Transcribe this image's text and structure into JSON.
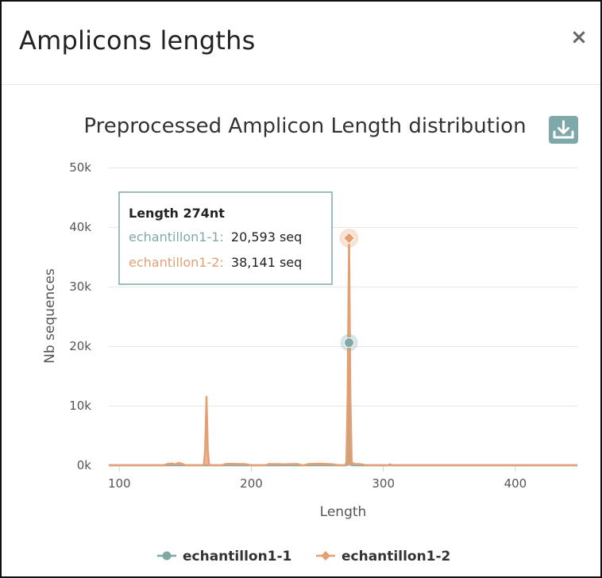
{
  "modal": {
    "title": "Amplicons lengths",
    "close_label": "×"
  },
  "colors": {
    "series1": "#7fa9a8",
    "series2": "#e4a072",
    "grid": "#e6e6e6",
    "download": "#7fa9a8"
  },
  "icons": {
    "download": "download-icon",
    "close": "close-icon"
  },
  "chart_data": {
    "type": "area",
    "title": "Preprocessed Amplicon Length distribution",
    "xlabel": "Length",
    "ylabel": "Nb sequences",
    "xlim": [
      92,
      447
    ],
    "ylim": [
      0,
      50000
    ],
    "xticks": [
      100,
      200,
      300,
      400
    ],
    "yticks": [
      0,
      10000,
      20000,
      30000,
      40000,
      50000
    ],
    "ytick_labels": [
      "0k",
      "10k",
      "20k",
      "30k",
      "40k",
      "50k"
    ],
    "grid": true,
    "legend_position": "bottom-center",
    "series": [
      {
        "name": "echantillon1-1",
        "points": [
          [
            92,
            0
          ],
          [
            272,
            0
          ],
          [
            273,
            300
          ],
          [
            274,
            20593
          ],
          [
            275,
            300
          ],
          [
            276,
            0
          ],
          [
            304,
            0
          ],
          [
            305,
            150
          ],
          [
            306,
            0
          ],
          [
            447,
            0
          ]
        ]
      },
      {
        "name": "echantillon1-2",
        "points": [
          [
            92,
            0
          ],
          [
            134,
            0
          ],
          [
            136,
            200
          ],
          [
            140,
            300
          ],
          [
            142,
            150
          ],
          [
            145,
            400
          ],
          [
            148,
            200
          ],
          [
            150,
            0
          ],
          [
            164,
            0
          ],
          [
            165,
            2500
          ],
          [
            166,
            11500
          ],
          [
            167,
            2500
          ],
          [
            168,
            0
          ],
          [
            178,
            0
          ],
          [
            180,
            200
          ],
          [
            185,
            250
          ],
          [
            190,
            200
          ],
          [
            195,
            200
          ],
          [
            200,
            0
          ],
          [
            211,
            0
          ],
          [
            213,
            200
          ],
          [
            220,
            200
          ],
          [
            225,
            150
          ],
          [
            230,
            200
          ],
          [
            235,
            200
          ],
          [
            238,
            0
          ],
          [
            240,
            0
          ],
          [
            243,
            200
          ],
          [
            248,
            250
          ],
          [
            253,
            250
          ],
          [
            258,
            200
          ],
          [
            262,
            150
          ],
          [
            266,
            0
          ],
          [
            271,
            0
          ],
          [
            272,
            500
          ],
          [
            273,
            12000
          ],
          [
            274,
            38141
          ],
          [
            275,
            12000
          ],
          [
            276,
            500
          ],
          [
            278,
            200
          ],
          [
            282,
            200
          ],
          [
            285,
            100
          ],
          [
            287,
            0
          ],
          [
            447,
            0
          ]
        ]
      }
    ],
    "tooltip": {
      "title": "Length 274nt",
      "rows": [
        {
          "name": "echantillon1-1:",
          "value": "20,593 seq"
        },
        {
          "name": "echantillon1-2:",
          "value": "38,141 seq"
        }
      ],
      "x": 274,
      "markers": [
        20593,
        38141
      ]
    }
  }
}
